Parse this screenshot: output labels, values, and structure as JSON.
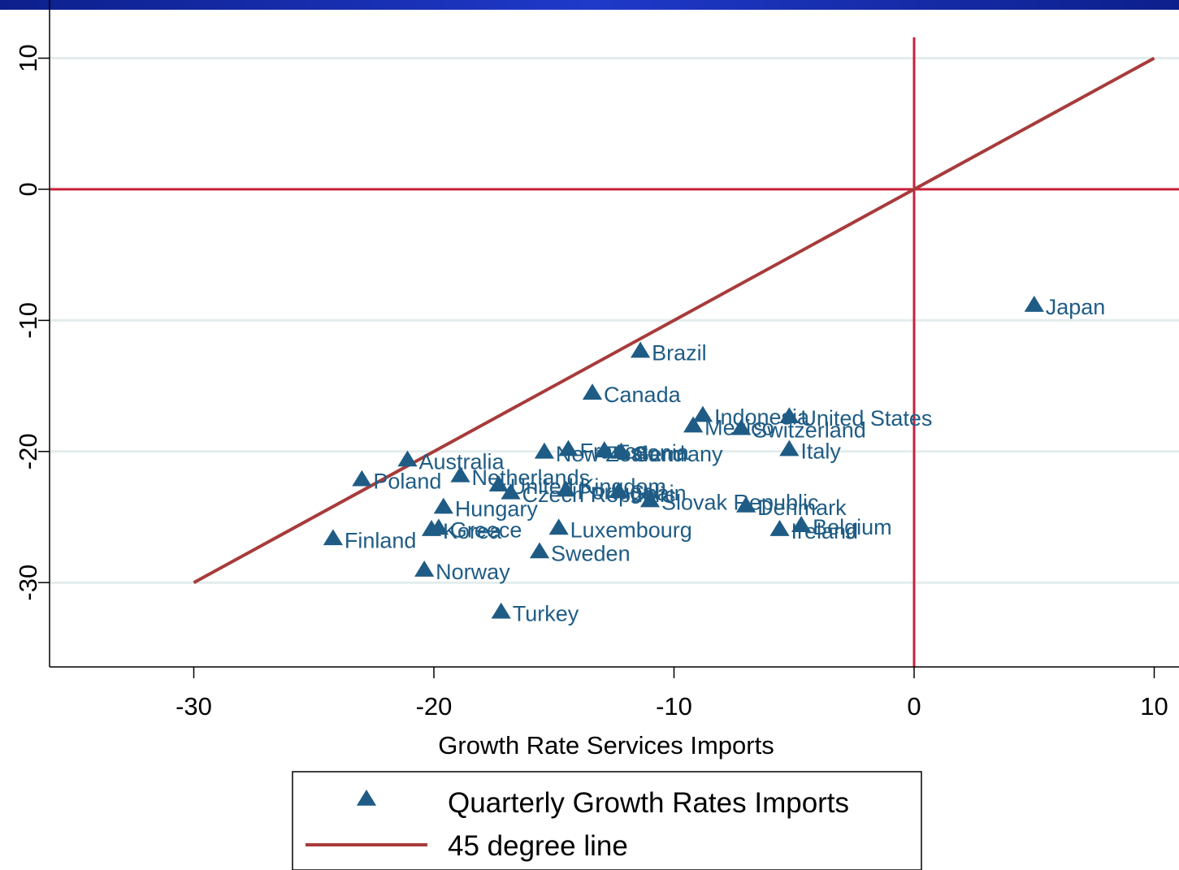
{
  "chart_data": {
    "type": "scatter",
    "title": "",
    "xlabel": "Growth Rate Services Imports",
    "ylabel": "",
    "xlim": [
      -36,
      11
    ],
    "ylim": [
      -38,
      13
    ],
    "x_ticks": [
      -30,
      -20,
      -10,
      0,
      10
    ],
    "y_ticks": [
      -30,
      -20,
      -10,
      0,
      10
    ],
    "x_tick_labels": [
      "-30",
      "-20",
      "-10",
      "0",
      "10"
    ],
    "y_tick_labels": [
      "-30",
      "-20",
      "-10",
      "0",
      "10"
    ],
    "grid": true,
    "reference_lines": {
      "vertical_x": 0,
      "horizontal_y": 0
    },
    "colors": {
      "points": "#1f5c85",
      "diagonal": "#a83b3b",
      "reference": "#c8203a",
      "grid": "#e3ecec",
      "banner": "#1a34b8"
    },
    "legend_position": "bottom",
    "legend": [
      {
        "label": "Quarterly Growth Rates Imports",
        "marker": "triangle"
      },
      {
        "label": "45 degree line",
        "marker": "line"
      }
    ],
    "diagonal": {
      "name": "45 degree line",
      "from": [
        -30,
        -30
      ],
      "to": [
        10,
        10
      ]
    },
    "series": [
      {
        "name": "Quarterly Growth Rates Imports",
        "points": [
          {
            "label": "Japan",
            "x": 5.0,
            "y": -8.8
          },
          {
            "label": "Brazil",
            "x": -11.4,
            "y": -12.3
          },
          {
            "label": "Canada",
            "x": -13.4,
            "y": -15.5
          },
          {
            "label": "Indonesia",
            "x": -8.8,
            "y": -17.2
          },
          {
            "label": "United States",
            "x": -5.2,
            "y": -17.3
          },
          {
            "label": "Mexico",
            "x": -9.2,
            "y": -18.0
          },
          {
            "label": "Switzerland",
            "x": -7.2,
            "y": -18.2
          },
          {
            "label": "Italy",
            "x": -5.2,
            "y": -19.8
          },
          {
            "label": "Germany",
            "x": -12.2,
            "y": -20.0
          },
          {
            "label": "Estonia",
            "x": -12.9,
            "y": -19.9
          },
          {
            "label": "France",
            "x": -14.4,
            "y": -19.8
          },
          {
            "label": "New Zealand",
            "x": -15.4,
            "y": -20.0
          },
          {
            "label": "Australia",
            "x": -21.1,
            "y": -20.6
          },
          {
            "label": "Poland",
            "x": -23.0,
            "y": -22.1
          },
          {
            "label": "Netherlands",
            "x": -18.9,
            "y": -21.8
          },
          {
            "label": "United Kingdom",
            "x": -17.3,
            "y": -22.5
          },
          {
            "label": "Czech Republic",
            "x": -16.8,
            "y": -23.1
          },
          {
            "label": "Portugal",
            "x": -14.5,
            "y": -22.9
          },
          {
            "label": "Spain",
            "x": -12.3,
            "y": -23.0
          },
          {
            "label": "Slovak Republic",
            "x": -11.0,
            "y": -23.7
          },
          {
            "label": "Denmark",
            "x": -7.0,
            "y": -24.1
          },
          {
            "label": "Belgium",
            "x": -4.7,
            "y": -25.6
          },
          {
            "label": "Ireland",
            "x": -5.6,
            "y": -25.9
          },
          {
            "label": "Hungary",
            "x": -19.6,
            "y": -24.2
          },
          {
            "label": "Greece",
            "x": -19.8,
            "y": -25.8
          },
          {
            "label": "Korea",
            "x": -20.1,
            "y": -25.9
          },
          {
            "label": "Luxembourg",
            "x": -14.8,
            "y": -25.8
          },
          {
            "label": "Finland",
            "x": -24.2,
            "y": -26.6
          },
          {
            "label": "Sweden",
            "x": -15.6,
            "y": -27.6
          },
          {
            "label": "Norway",
            "x": -20.4,
            "y": -29.0
          },
          {
            "label": "Turkey",
            "x": -17.2,
            "y": -32.2
          }
        ]
      }
    ]
  }
}
